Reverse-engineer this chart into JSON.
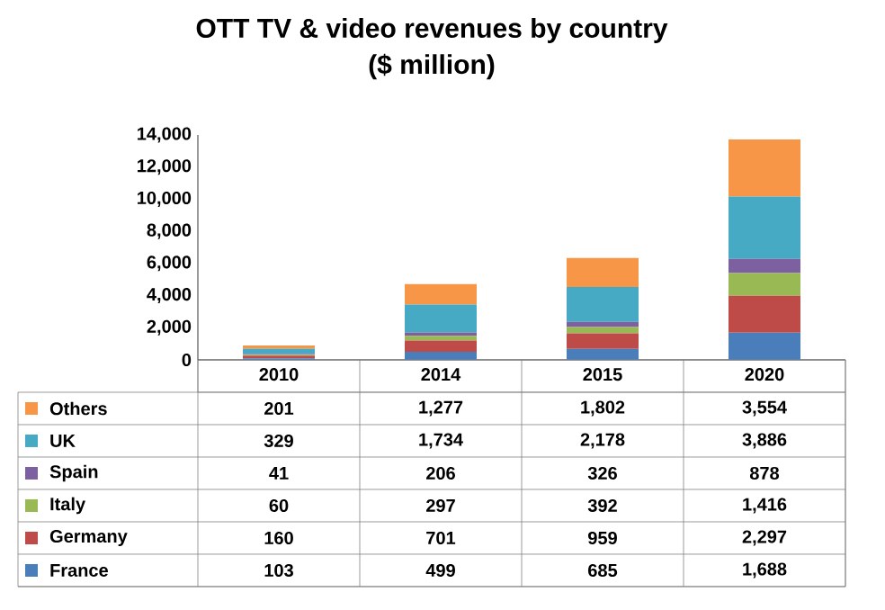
{
  "chart_data": {
    "type": "bar",
    "stacked": true,
    "title": "OTT TV & video revenues by country",
    "subtitle": "($ million)",
    "categories": [
      "2010",
      "2014",
      "2015",
      "2020"
    ],
    "series": [
      {
        "name": "France",
        "color": "#4a7ebb",
        "values": [
          103,
          499,
          685,
          1688
        ],
        "value_labels": [
          "103",
          "499",
          "685",
          "1,688"
        ]
      },
      {
        "name": "Germany",
        "color": "#be4b48",
        "values": [
          160,
          701,
          959,
          2297
        ],
        "value_labels": [
          "160",
          "701",
          "959",
          "2,297"
        ]
      },
      {
        "name": "Italy",
        "color": "#98b954",
        "values": [
          60,
          297,
          392,
          1416
        ],
        "value_labels": [
          "60",
          "297",
          "392",
          "1,416"
        ]
      },
      {
        "name": "Spain",
        "color": "#7d60a0",
        "values": [
          41,
          206,
          326,
          878
        ],
        "value_labels": [
          "41",
          "206",
          "326",
          "878"
        ]
      },
      {
        "name": "UK",
        "color": "#46aac5",
        "values": [
          329,
          1734,
          2178,
          3886
        ],
        "value_labels": [
          "329",
          "1,734",
          "2,178",
          "3,886"
        ]
      },
      {
        "name": "Others",
        "color": "#f79646",
        "values": [
          201,
          1277,
          1802,
          3554
        ],
        "value_labels": [
          "201",
          "1,277",
          "1,802",
          "3,554"
        ]
      }
    ],
    "ylim": [
      0,
      14000
    ],
    "yticks": [
      0,
      {
        "value": 2000,
        "label": "2,000"
      },
      {
        "value": 4000,
        "label": "4,000"
      },
      {
        "value": 6000,
        "label": "6,000"
      },
      {
        "value": 8000,
        "label": "8,000"
      },
      {
        "value": 10000,
        "label": "10,000"
      },
      {
        "value": 12000,
        "label": "12,000"
      },
      {
        "value": 14000,
        "label": "14,000"
      }
    ],
    "legend": "bottom"
  }
}
